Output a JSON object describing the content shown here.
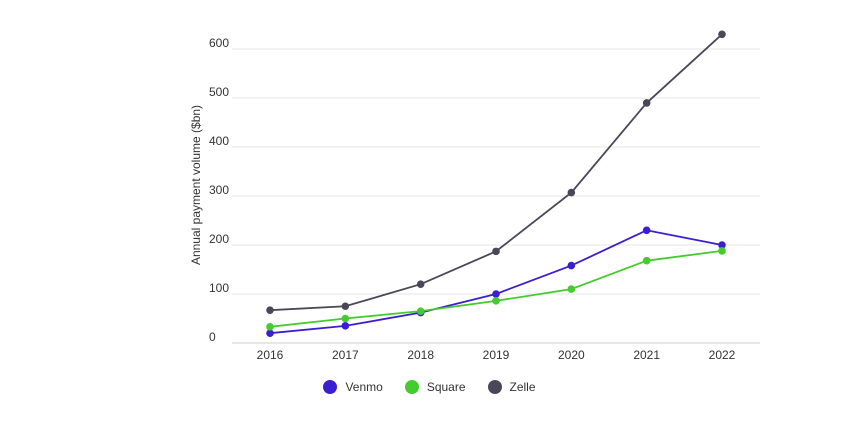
{
  "chart_data": {
    "type": "line",
    "x": [
      "2016",
      "2017",
      "2018",
      "2019",
      "2020",
      "2021",
      "2022"
    ],
    "ylabel": "Annual payment volume ($bn)",
    "yticks": [
      "0",
      "100",
      "200",
      "300",
      "400",
      "500",
      "600"
    ],
    "ylim": [
      0,
      620
    ],
    "grid": true,
    "legend_position": "bottom",
    "series": [
      {
        "name": "Venmo",
        "color": "#3a1fd1",
        "values": [
          20,
          35,
          62,
          100,
          158,
          230,
          200
        ]
      },
      {
        "name": "Square",
        "color": "#44cc2e",
        "values": [
          33,
          50,
          65,
          86,
          110,
          168,
          188
        ]
      },
      {
        "name": "Zelle",
        "color": "#4a4858",
        "values": [
          67,
          75,
          120,
          187,
          307,
          490,
          630
        ]
      }
    ]
  }
}
